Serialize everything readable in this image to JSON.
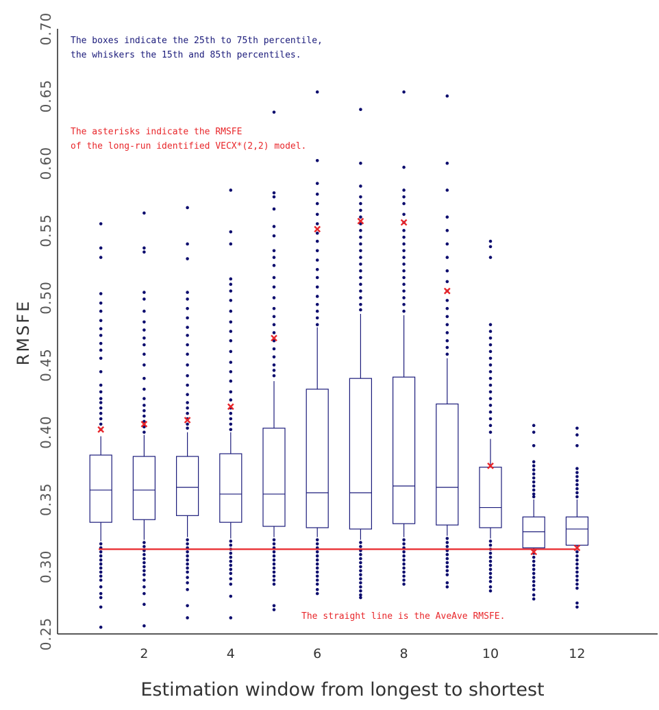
{
  "chart_data": {
    "type": "box",
    "title": "",
    "xlabel": "Estimation window from longest to shortest",
    "ylabel": "RMSFE",
    "ylim": [
      0.25,
      0.7
    ],
    "xlim": [
      0,
      14
    ],
    "yticks": [
      "0.25",
      "0.30",
      "0.35",
      "0.40",
      "0.45",
      "0.50",
      "0.55",
      "0.60",
      "0.65",
      "0.70"
    ],
    "xticks": [
      "2",
      "4",
      "6",
      "8",
      "10",
      "12"
    ],
    "colors": {
      "box": "#1a1a7a",
      "outlier": "#0d0d6e",
      "asterisk": "#e8262a",
      "line": "#e8262a",
      "axis": "#222222"
    },
    "annotations": {
      "boxes_note": [
        "The boxes indicate the 25th to 75th percentile,",
        "the whiskers the 15th and 85th percentiles."
      ],
      "asterisk_note": [
        "The asterisks indicate the RMSFE",
        "of the long-run identified VECX*(2,2) model."
      ],
      "line_note": "The straight line is the AveAve RMSFE."
    },
    "aveave_rmsfe": 0.313,
    "boxes": [
      {
        "x": 1,
        "p15": 0.319,
        "q1": 0.333,
        "median": 0.357,
        "q3": 0.383,
        "p85": 0.397,
        "asterisk": 0.402,
        "outliers_high": [
          0.555,
          0.537,
          0.53,
          0.503,
          0.496,
          0.49,
          0.483,
          0.477,
          0.472,
          0.466,
          0.461,
          0.455,
          0.445,
          0.435,
          0.43,
          0.425,
          0.422,
          0.418,
          0.414,
          0.41,
          0.406,
          0.402
        ],
        "outliers_low": [
          0.317,
          0.314,
          0.311,
          0.308,
          0.305,
          0.302,
          0.299,
          0.296,
          0.293,
          0.29,
          0.285,
          0.28,
          0.277,
          0.27,
          0.255
        ]
      },
      {
        "x": 2,
        "p15": 0.32,
        "q1": 0.335,
        "median": 0.357,
        "q3": 0.382,
        "p85": 0.398,
        "asterisk": 0.406,
        "outliers_high": [
          0.563,
          0.537,
          0.534,
          0.504,
          0.499,
          0.49,
          0.482,
          0.476,
          0.47,
          0.465,
          0.458,
          0.45,
          0.44,
          0.432,
          0.425,
          0.42,
          0.416,
          0.412,
          0.408,
          0.404,
          0.4
        ],
        "outliers_low": [
          0.318,
          0.315,
          0.312,
          0.309,
          0.306,
          0.303,
          0.3,
          0.297,
          0.294,
          0.29,
          0.285,
          0.28,
          0.272,
          0.256
        ]
      },
      {
        "x": 3,
        "p15": 0.322,
        "q1": 0.338,
        "median": 0.359,
        "q3": 0.382,
        "p85": 0.4,
        "asterisk": 0.409,
        "outliers_high": [
          0.567,
          0.54,
          0.529,
          0.504,
          0.499,
          0.492,
          0.485,
          0.478,
          0.472,
          0.465,
          0.458,
          0.45,
          0.442,
          0.435,
          0.428,
          0.422,
          0.418,
          0.414,
          0.41,
          0.406,
          0.403
        ],
        "outliers_low": [
          0.32,
          0.317,
          0.314,
          0.311,
          0.308,
          0.305,
          0.302,
          0.299,
          0.296,
          0.292,
          0.288,
          0.283,
          0.271,
          0.262
        ]
      },
      {
        "x": 4,
        "p15": 0.321,
        "q1": 0.333,
        "median": 0.354,
        "q3": 0.384,
        "p85": 0.4,
        "asterisk": 0.419,
        "outliers_high": [
          0.58,
          0.549,
          0.54,
          0.514,
          0.51,
          0.505,
          0.498,
          0.49,
          0.482,
          0.475,
          0.468,
          0.46,
          0.452,
          0.445,
          0.438,
          0.43,
          0.424,
          0.418,
          0.414,
          0.41,
          0.406,
          0.402
        ],
        "outliers_low": [
          0.319,
          0.316,
          0.313,
          0.31,
          0.307,
          0.304,
          0.301,
          0.298,
          0.295,
          0.291,
          0.287,
          0.278,
          0.262
        ]
      },
      {
        "x": 5,
        "p15": 0.322,
        "q1": 0.33,
        "median": 0.354,
        "q3": 0.403,
        "p85": 0.438,
        "asterisk": 0.47,
        "outliers_high": [
          0.638,
          0.578,
          0.575,
          0.566,
          0.553,
          0.546,
          0.535,
          0.53,
          0.524,
          0.515,
          0.508,
          0.5,
          0.492,
          0.486,
          0.48,
          0.474,
          0.468,
          0.462,
          0.456,
          0.45,
          0.446,
          0.442
        ],
        "outliers_low": [
          0.32,
          0.317,
          0.314,
          0.311,
          0.308,
          0.305,
          0.302,
          0.299,
          0.296,
          0.293,
          0.29,
          0.287,
          0.271,
          0.268
        ]
      },
      {
        "x": 6,
        "p15": 0.322,
        "q1": 0.329,
        "median": 0.355,
        "q3": 0.432,
        "p85": 0.478,
        "asterisk": 0.551,
        "outliers_high": [
          0.653,
          0.602,
          0.585,
          0.577,
          0.57,
          0.562,
          0.555,
          0.548,
          0.542,
          0.535,
          0.528,
          0.521,
          0.515,
          0.508,
          0.501,
          0.495,
          0.49,
          0.485,
          0.48
        ],
        "outliers_low": [
          0.32,
          0.317,
          0.314,
          0.311,
          0.308,
          0.305,
          0.302,
          0.299,
          0.296,
          0.293,
          0.29,
          0.287,
          0.283,
          0.28
        ]
      },
      {
        "x": 7,
        "p15": 0.32,
        "q1": 0.328,
        "median": 0.355,
        "q3": 0.44,
        "p85": 0.488,
        "asterisk": 0.557,
        "outliers_high": [
          0.64,
          0.6,
          0.583,
          0.575,
          0.57,
          0.565,
          0.56,
          0.555,
          0.55,
          0.545,
          0.54,
          0.535,
          0.53,
          0.525,
          0.52,
          0.515,
          0.51,
          0.505,
          0.5,
          0.495,
          0.491
        ],
        "outliers_low": [
          0.318,
          0.315,
          0.312,
          0.309,
          0.306,
          0.303,
          0.3,
          0.297,
          0.294,
          0.291,
          0.288,
          0.285,
          0.282,
          0.279,
          0.277
        ]
      },
      {
        "x": 8,
        "p15": 0.322,
        "q1": 0.332,
        "median": 0.36,
        "q3": 0.441,
        "p85": 0.487,
        "asterisk": 0.556,
        "outliers_high": [
          0.653,
          0.597,
          0.58,
          0.575,
          0.57,
          0.562,
          0.556,
          0.55,
          0.545,
          0.54,
          0.535,
          0.53,
          0.525,
          0.52,
          0.515,
          0.51,
          0.505,
          0.5,
          0.495,
          0.49
        ],
        "outliers_low": [
          0.32,
          0.317,
          0.314,
          0.311,
          0.308,
          0.305,
          0.302,
          0.299,
          0.296,
          0.293,
          0.29,
          0.287
        ]
      },
      {
        "x": 9,
        "p15": 0.323,
        "q1": 0.331,
        "median": 0.359,
        "q3": 0.421,
        "p85": 0.455,
        "asterisk": 0.505,
        "outliers_high": [
          0.65,
          0.6,
          0.58,
          0.56,
          0.55,
          0.54,
          0.53,
          0.52,
          0.512,
          0.505,
          0.498,
          0.492,
          0.486,
          0.48,
          0.474,
          0.468,
          0.463,
          0.458
        ],
        "outliers_low": [
          0.321,
          0.318,
          0.315,
          0.312,
          0.309,
          0.306,
          0.303,
          0.3,
          0.297,
          0.294,
          0.288,
          0.285
        ]
      },
      {
        "x": 10,
        "p15": 0.321,
        "q1": 0.329,
        "median": 0.344,
        "q3": 0.374,
        "p85": 0.395,
        "asterisk": 0.375,
        "outliers_high": [
          0.542,
          0.538,
          0.53,
          0.48,
          0.475,
          0.47,
          0.465,
          0.46,
          0.455,
          0.45,
          0.445,
          0.44,
          0.435,
          0.43,
          0.425,
          0.42,
          0.415,
          0.41,
          0.405,
          0.4
        ],
        "outliers_low": [
          0.319,
          0.316,
          0.313,
          0.31,
          0.307,
          0.304,
          0.301,
          0.298,
          0.295,
          0.292,
          0.289,
          0.285,
          0.282
        ]
      },
      {
        "x": 11,
        "p15": 0.312,
        "q1": 0.314,
        "median": 0.326,
        "q3": 0.337,
        "p85": 0.35,
        "asterisk": 0.311,
        "outliers_high": [
          0.405,
          0.4,
          0.39,
          0.378,
          0.375,
          0.372,
          0.369,
          0.366,
          0.363,
          0.36,
          0.357,
          0.354,
          0.352
        ],
        "outliers_low": [
          0.31,
          0.307,
          0.304,
          0.301,
          0.298,
          0.295,
          0.292,
          0.289,
          0.286,
          0.283,
          0.279,
          0.276
        ]
      },
      {
        "x": 12,
        "p15": 0.313,
        "q1": 0.316,
        "median": 0.328,
        "q3": 0.337,
        "p85": 0.35,
        "asterisk": 0.314,
        "outliers_high": [
          0.403,
          0.398,
          0.39,
          0.373,
          0.37,
          0.367,
          0.364,
          0.361,
          0.358,
          0.355,
          0.352
        ],
        "outliers_low": [
          0.311,
          0.308,
          0.305,
          0.302,
          0.299,
          0.296,
          0.293,
          0.29,
          0.287,
          0.284,
          0.273,
          0.27
        ]
      }
    ]
  }
}
